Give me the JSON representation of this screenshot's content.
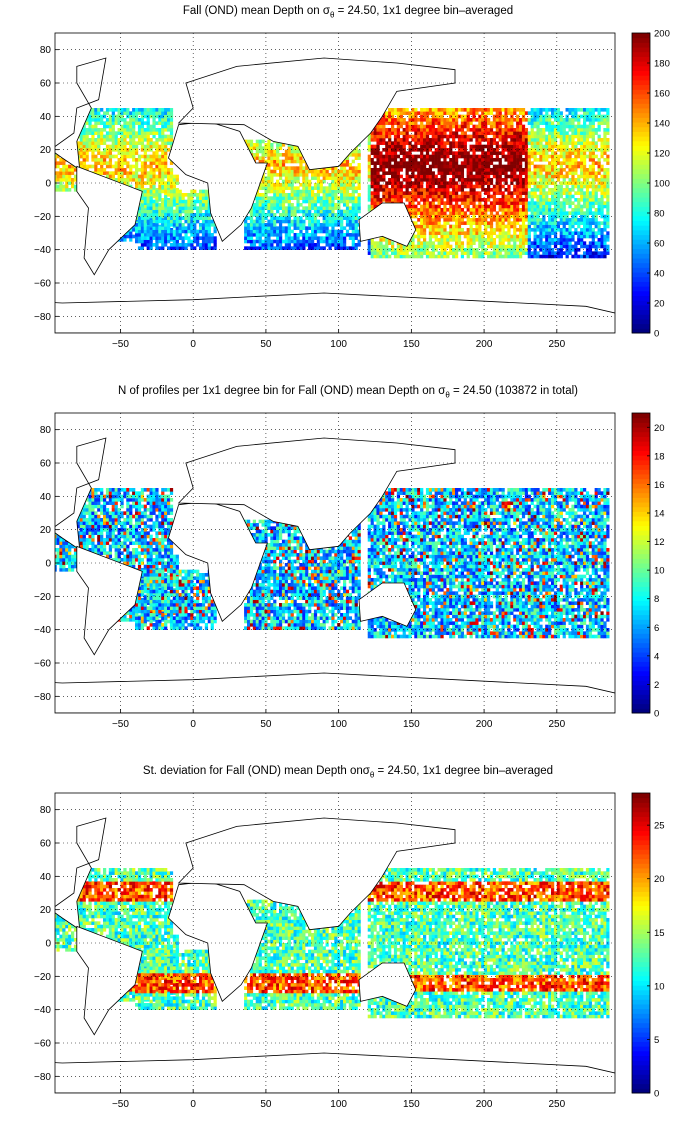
{
  "chart_data": [
    {
      "type": "heatmap",
      "title_prefix": "Fall (OND) mean Depth on ",
      "title_suffix": " = 24.50, 1x1 degree bin–averaged",
      "sigma_symbol": "σ",
      "sigma_sub": "θ",
      "xlim": [
        -95,
        290
      ],
      "ylim": [
        -90,
        90
      ],
      "x_ticks": [
        -50,
        0,
        50,
        100,
        150,
        200,
        250
      ],
      "y_ticks": [
        -80,
        -60,
        -40,
        -20,
        0,
        20,
        40,
        60,
        80
      ],
      "colorbar_ticks": [
        0,
        20,
        40,
        60,
        80,
        100,
        120,
        140,
        160,
        180,
        200
      ],
      "clim": [
        0,
        200
      ],
      "colormap": "jet",
      "grid": "dotted"
    },
    {
      "type": "heatmap",
      "title_prefix": "N of profiles per 1x1 degree bin for Fall (OND) mean Depth on ",
      "title_suffix": " = 24.50 (103872 in total)",
      "sigma_symbol": "σ",
      "sigma_sub": "θ",
      "xlim": [
        -95,
        290
      ],
      "ylim": [
        -90,
        90
      ],
      "x_ticks": [
        -50,
        0,
        50,
        100,
        150,
        200,
        250
      ],
      "y_ticks": [
        -80,
        -60,
        -40,
        -20,
        0,
        20,
        40,
        60,
        80
      ],
      "colorbar_ticks": [
        0,
        2,
        4,
        6,
        8,
        10,
        12,
        14,
        16,
        18,
        20
      ],
      "clim": [
        0,
        21
      ],
      "colormap": "jet",
      "grid": "dotted"
    },
    {
      "type": "heatmap",
      "title_prefix": "St. deviation for Fall (OND) mean Depth on",
      "title_suffix": " = 24.50, 1x1 degree bin–averaged",
      "sigma_symbol": "σ",
      "sigma_sub": "θ",
      "xlim": [
        -95,
        290
      ],
      "ylim": [
        -90,
        90
      ],
      "x_ticks": [
        -50,
        0,
        50,
        100,
        150,
        200,
        250
      ],
      "y_ticks": [
        -80,
        -60,
        -40,
        -20,
        0,
        20,
        40,
        60,
        80
      ],
      "colorbar_ticks": [
        0,
        5,
        10,
        15,
        20,
        25
      ],
      "clim": [
        0,
        28
      ],
      "colormap": "jet",
      "grid": "dotted"
    }
  ]
}
